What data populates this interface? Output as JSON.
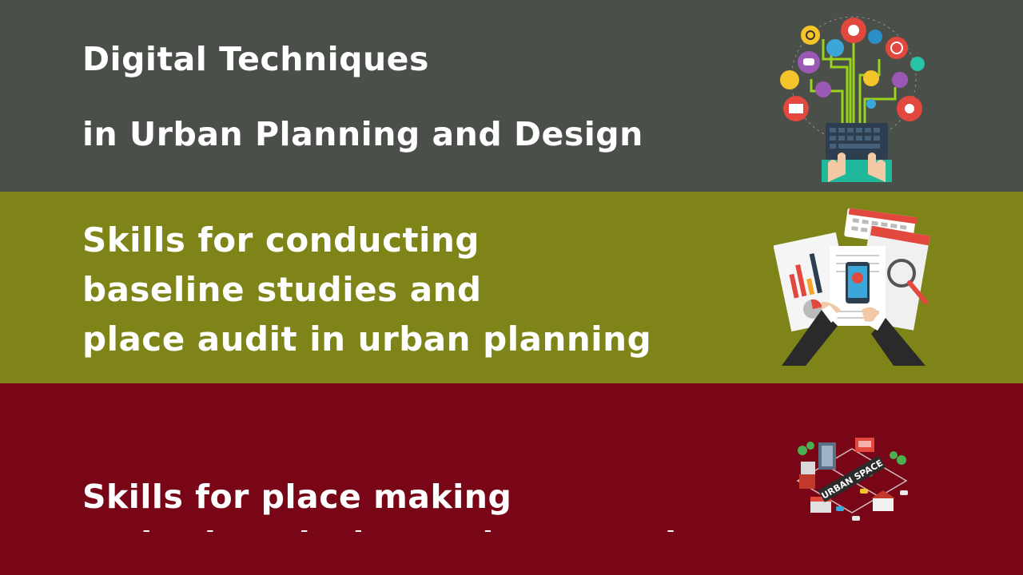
{
  "colors": {
    "band_1": "#4a4f49",
    "band_2": "#7f8418",
    "band_3": "#790617",
    "text": "#ffffff"
  },
  "sections": [
    {
      "title_line_1": "Digital Techniques",
      "title_line_2": "in Urban Planning and Design",
      "icon": "digital-technology-icon"
    },
    {
      "title_line_1": "Skills for conducting",
      "title_line_2": "baseline studies and",
      "title_line_3": "place audit in urban planning",
      "icon": "report-analysis-icon"
    },
    {
      "title_line_1": "Skills for place making",
      "title_line_2": "and urban design and community",
      "icon": "urban-space-map-icon",
      "icon_label": "URBAN SPACE"
    }
  ]
}
